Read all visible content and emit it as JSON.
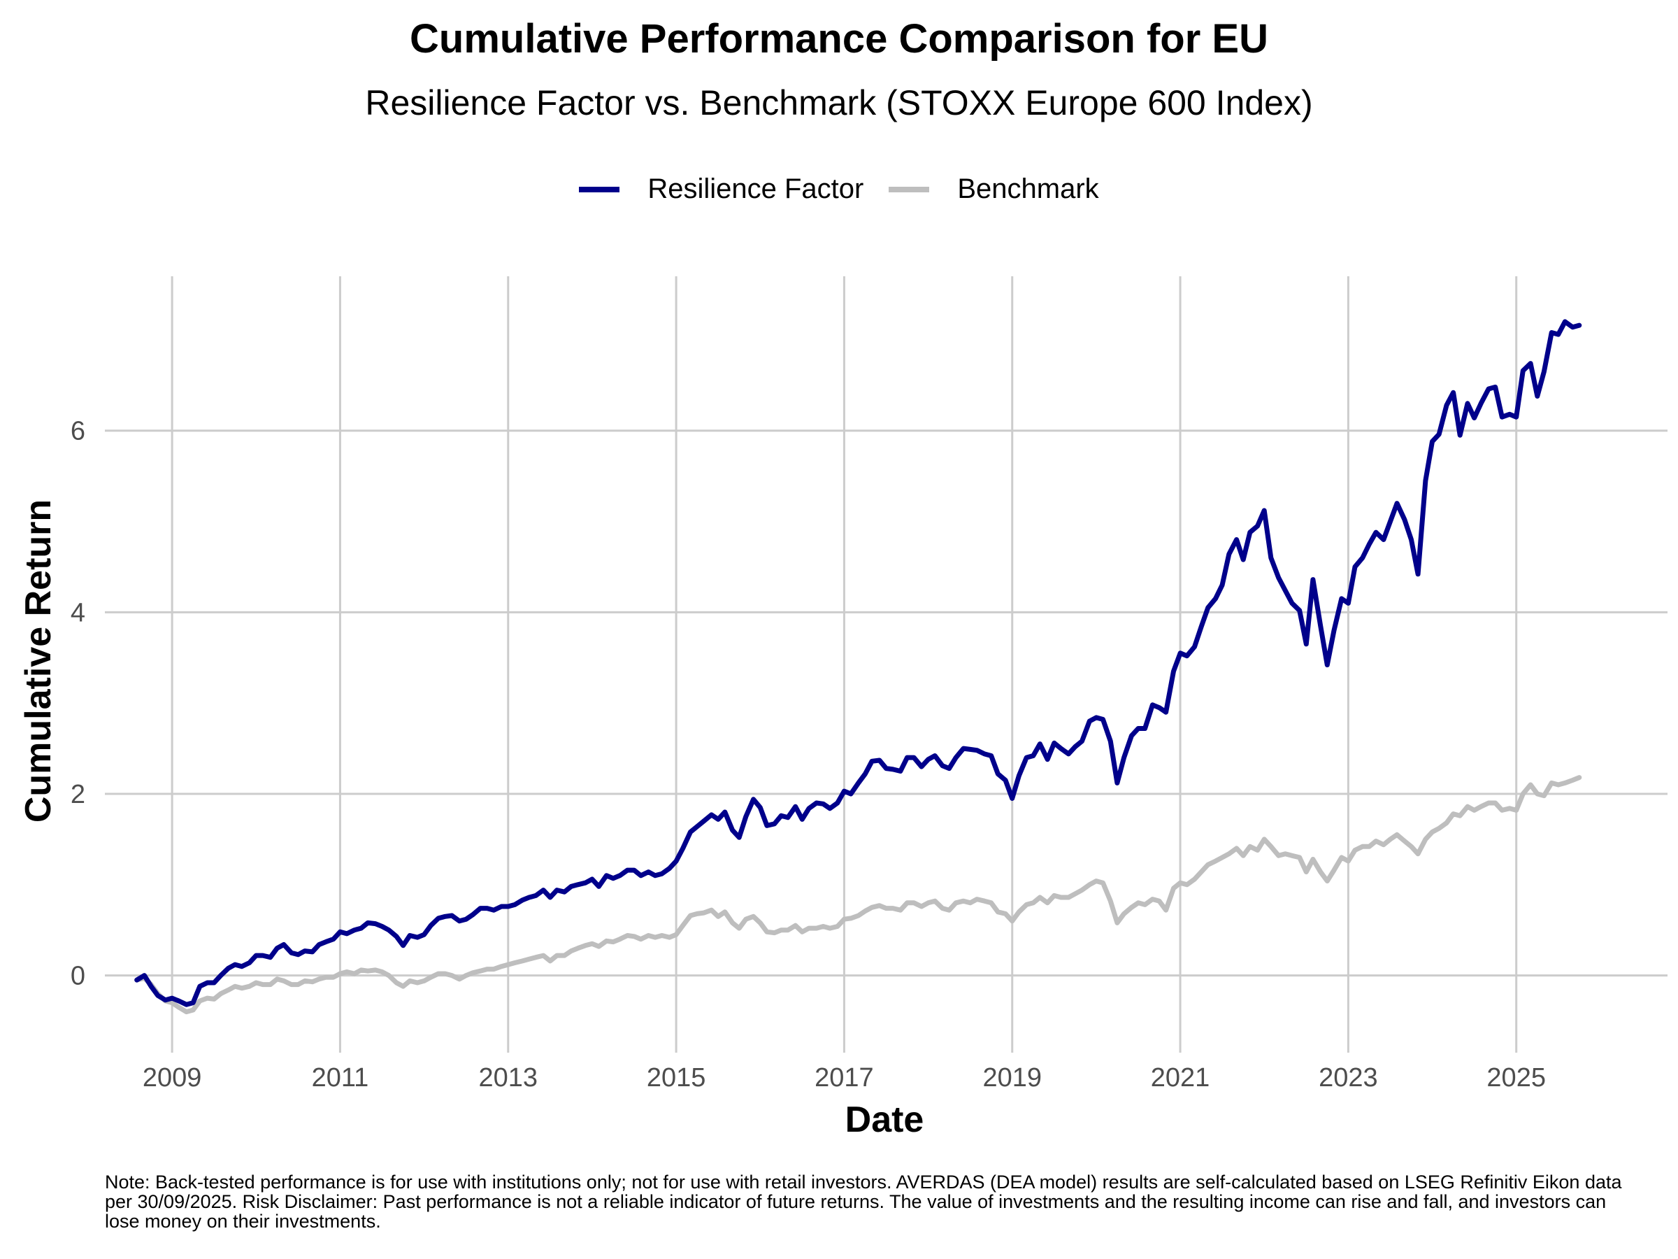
{
  "chart_data": {
    "type": "line",
    "title": "Cumulative Performance Comparison for EU",
    "subtitle": "Resilience Factor vs. Benchmark (STOXX Europe 600 Index)",
    "xlabel": "Date",
    "ylabel": "Cumulative Return",
    "xlim": [
      2008.2,
      2026.8
    ],
    "ylim": [
      -0.85,
      7.7
    ],
    "x_ticks": [
      2009,
      2011,
      2013,
      2015,
      2017,
      2019,
      2021,
      2023,
      2025
    ],
    "y_ticks": [
      0,
      2,
      4,
      6
    ],
    "grid": true,
    "legend_position": "top",
    "series": [
      {
        "name": "Resilience Factor",
        "color": "#00008B",
        "x": [
          2008.58,
          2008.67,
          2008.75,
          2008.83,
          2008.92,
          2009.0,
          2009.08,
          2009.17,
          2009.25,
          2009.33,
          2009.42,
          2009.5,
          2009.58,
          2009.67,
          2009.75,
          2009.83,
          2009.92,
          2010.0,
          2010.08,
          2010.17,
          2010.25,
          2010.33,
          2010.42,
          2010.5,
          2010.58,
          2010.67,
          2010.75,
          2010.83,
          2010.92,
          2011.0,
          2011.08,
          2011.17,
          2011.25,
          2011.33,
          2011.42,
          2011.5,
          2011.58,
          2011.67,
          2011.75,
          2011.83,
          2011.92,
          2012.0,
          2012.08,
          2012.17,
          2012.25,
          2012.33,
          2012.42,
          2012.5,
          2012.58,
          2012.67,
          2012.75,
          2012.83,
          2012.92,
          2013.0,
          2013.08,
          2013.17,
          2013.25,
          2013.33,
          2013.42,
          2013.5,
          2013.58,
          2013.67,
          2013.75,
          2013.83,
          2013.92,
          2014.0,
          2014.08,
          2014.17,
          2014.25,
          2014.33,
          2014.42,
          2014.5,
          2014.58,
          2014.67,
          2014.75,
          2014.83,
          2014.92,
          2015.0,
          2015.08,
          2015.17,
          2015.25,
          2015.33,
          2015.42,
          2015.5,
          2015.58,
          2015.67,
          2015.75,
          2015.83,
          2015.92,
          2016.0,
          2016.08,
          2016.17,
          2016.25,
          2016.33,
          2016.42,
          2016.5,
          2016.58,
          2016.67,
          2016.75,
          2016.83,
          2016.92,
          2017.0,
          2017.08,
          2017.17,
          2017.25,
          2017.33,
          2017.42,
          2017.5,
          2017.58,
          2017.67,
          2017.75,
          2017.83,
          2017.92,
          2018.0,
          2018.08,
          2018.17,
          2018.25,
          2018.33,
          2018.42,
          2018.5,
          2018.58,
          2018.67,
          2018.75,
          2018.83,
          2018.92,
          2019.0,
          2019.08,
          2019.17,
          2019.25,
          2019.33,
          2019.42,
          2019.5,
          2019.58,
          2019.67,
          2019.75,
          2019.83,
          2019.92,
          2020.0,
          2020.08,
          2020.17,
          2020.25,
          2020.33,
          2020.42,
          2020.5,
          2020.58,
          2020.67,
          2020.75,
          2020.83,
          2020.92,
          2021.0,
          2021.08,
          2021.17,
          2021.25,
          2021.33,
          2021.42,
          2021.5,
          2021.58,
          2021.67,
          2021.75,
          2021.83,
          2021.92,
          2022.0,
          2022.08,
          2022.17,
          2022.25,
          2022.33,
          2022.42,
          2022.5,
          2022.58,
          2022.67,
          2022.75,
          2022.83,
          2022.92,
          2023.0,
          2023.08,
          2023.17,
          2023.25,
          2023.33,
          2023.42,
          2023.5,
          2023.58,
          2023.67,
          2023.75,
          2023.83,
          2023.92,
          2024.0,
          2024.08,
          2024.17,
          2024.25,
          2024.33,
          2024.42,
          2024.5,
          2024.58,
          2024.67,
          2024.75,
          2024.83,
          2024.92,
          2025.0,
          2025.08,
          2025.17,
          2025.25,
          2025.33,
          2025.42,
          2025.5,
          2025.58,
          2025.67,
          2025.75
        ],
        "values": [
          -0.05,
          0.0,
          -0.12,
          -0.22,
          -0.27,
          -0.25,
          -0.28,
          -0.32,
          -0.3,
          -0.12,
          -0.08,
          -0.08,
          0.0,
          0.08,
          0.12,
          0.1,
          0.14,
          0.22,
          0.22,
          0.2,
          0.3,
          0.34,
          0.25,
          0.23,
          0.27,
          0.26,
          0.34,
          0.37,
          0.4,
          0.48,
          0.46,
          0.5,
          0.52,
          0.58,
          0.57,
          0.54,
          0.5,
          0.43,
          0.33,
          0.44,
          0.42,
          0.45,
          0.55,
          0.63,
          0.65,
          0.66,
          0.6,
          0.62,
          0.67,
          0.74,
          0.74,
          0.72,
          0.76,
          0.76,
          0.78,
          0.83,
          0.86,
          0.88,
          0.94,
          0.86,
          0.94,
          0.92,
          0.98,
          1.0,
          1.02,
          1.06,
          0.98,
          1.1,
          1.07,
          1.1,
          1.16,
          1.16,
          1.1,
          1.14,
          1.1,
          1.12,
          1.18,
          1.26,
          1.4,
          1.58,
          1.64,
          1.7,
          1.77,
          1.72,
          1.8,
          1.6,
          1.52,
          1.75,
          1.94,
          1.85,
          1.65,
          1.67,
          1.76,
          1.74,
          1.86,
          1.72,
          1.84,
          1.9,
          1.89,
          1.84,
          1.9,
          2.03,
          2.0,
          2.12,
          2.22,
          2.36,
          2.37,
          2.28,
          2.27,
          2.25,
          2.4,
          2.4,
          2.3,
          2.38,
          2.42,
          2.31,
          2.28,
          2.4,
          2.5,
          2.49,
          2.48,
          2.44,
          2.42,
          2.22,
          2.15,
          1.95,
          2.2,
          2.4,
          2.42,
          2.55,
          2.38,
          2.56,
          2.5,
          2.44,
          2.52,
          2.58,
          2.8,
          2.84,
          2.82,
          2.58,
          2.12,
          2.4,
          2.64,
          2.72,
          2.72,
          2.98,
          2.95,
          2.9,
          3.35,
          3.55,
          3.52,
          3.62,
          3.84,
          4.05,
          4.15,
          4.3,
          4.64,
          4.8,
          4.58,
          4.88,
          4.95,
          5.12,
          4.6,
          4.38,
          4.24,
          4.1,
          4.02,
          3.65,
          4.36,
          3.85,
          3.42,
          3.8,
          4.15,
          4.1,
          4.5,
          4.6,
          4.75,
          4.88,
          4.8,
          5.0,
          5.2,
          5.02,
          4.8,
          4.42,
          5.45,
          5.88,
          5.96,
          6.28,
          6.42,
          5.95,
          6.3,
          6.14,
          6.3,
          6.46,
          6.48,
          6.15,
          6.18,
          6.15,
          6.66,
          6.74,
          6.38,
          6.65,
          7.08,
          7.06,
          7.2,
          7.14,
          7.16
        ]
      },
      {
        "name": "Benchmark",
        "color": "#BEBEBE",
        "x": [
          2008.58,
          2008.67,
          2008.75,
          2008.83,
          2008.92,
          2009.0,
          2009.08,
          2009.17,
          2009.25,
          2009.33,
          2009.42,
          2009.5,
          2009.58,
          2009.67,
          2009.75,
          2009.83,
          2009.92,
          2010.0,
          2010.08,
          2010.17,
          2010.25,
          2010.33,
          2010.42,
          2010.5,
          2010.58,
          2010.67,
          2010.75,
          2010.83,
          2010.92,
          2011.0,
          2011.08,
          2011.17,
          2011.25,
          2011.33,
          2011.42,
          2011.5,
          2011.58,
          2011.67,
          2011.75,
          2011.83,
          2011.92,
          2012.0,
          2012.08,
          2012.17,
          2012.25,
          2012.33,
          2012.42,
          2012.5,
          2012.58,
          2012.67,
          2012.75,
          2012.83,
          2012.92,
          2013.0,
          2013.08,
          2013.17,
          2013.25,
          2013.33,
          2013.42,
          2013.5,
          2013.58,
          2013.67,
          2013.75,
          2013.83,
          2013.92,
          2014.0,
          2014.08,
          2014.17,
          2014.25,
          2014.33,
          2014.42,
          2014.5,
          2014.58,
          2014.67,
          2014.75,
          2014.83,
          2014.92,
          2015.0,
          2015.08,
          2015.17,
          2015.25,
          2015.33,
          2015.42,
          2015.5,
          2015.58,
          2015.67,
          2015.75,
          2015.83,
          2015.92,
          2016.0,
          2016.08,
          2016.17,
          2016.25,
          2016.33,
          2016.42,
          2016.5,
          2016.58,
          2016.67,
          2016.75,
          2016.83,
          2016.92,
          2017.0,
          2017.08,
          2017.17,
          2017.25,
          2017.33,
          2017.42,
          2017.5,
          2017.58,
          2017.67,
          2017.75,
          2017.83,
          2017.92,
          2018.0,
          2018.08,
          2018.17,
          2018.25,
          2018.33,
          2018.42,
          2018.5,
          2018.58,
          2018.67,
          2018.75,
          2018.83,
          2018.92,
          2019.0,
          2019.08,
          2019.17,
          2019.25,
          2019.33,
          2019.42,
          2019.5,
          2019.58,
          2019.67,
          2019.75,
          2019.83,
          2019.92,
          2020.0,
          2020.08,
          2020.17,
          2020.25,
          2020.33,
          2020.42,
          2020.5,
          2020.58,
          2020.67,
          2020.75,
          2020.83,
          2020.92,
          2021.0,
          2021.08,
          2021.17,
          2021.25,
          2021.33,
          2021.42,
          2021.5,
          2021.58,
          2021.67,
          2021.75,
          2021.83,
          2021.92,
          2022.0,
          2022.08,
          2022.17,
          2022.25,
          2022.33,
          2022.42,
          2022.5,
          2022.58,
          2022.67,
          2022.75,
          2022.83,
          2022.92,
          2023.0,
          2023.08,
          2023.17,
          2023.25,
          2023.33,
          2023.42,
          2023.5,
          2023.58,
          2023.67,
          2023.75,
          2023.83,
          2023.92,
          2024.0,
          2024.08,
          2024.17,
          2024.25,
          2024.33,
          2024.42,
          2024.5,
          2024.58,
          2024.67,
          2024.75,
          2024.83,
          2024.92,
          2025.0,
          2025.08,
          2025.17,
          2025.25,
          2025.33,
          2025.42,
          2025.5,
          2025.58,
          2025.67,
          2025.75
        ],
        "values": [
          -0.05,
          -0.03,
          -0.1,
          -0.2,
          -0.28,
          -0.3,
          -0.35,
          -0.4,
          -0.38,
          -0.28,
          -0.25,
          -0.26,
          -0.2,
          -0.16,
          -0.12,
          -0.14,
          -0.12,
          -0.08,
          -0.1,
          -0.1,
          -0.04,
          -0.06,
          -0.1,
          -0.1,
          -0.06,
          -0.07,
          -0.04,
          -0.02,
          -0.02,
          0.02,
          0.04,
          0.02,
          0.06,
          0.05,
          0.06,
          0.04,
          0.0,
          -0.08,
          -0.12,
          -0.06,
          -0.08,
          -0.06,
          -0.02,
          0.02,
          0.02,
          0.0,
          -0.04,
          0.0,
          0.03,
          0.05,
          0.07,
          0.07,
          0.1,
          0.12,
          0.14,
          0.16,
          0.18,
          0.2,
          0.22,
          0.16,
          0.22,
          0.22,
          0.27,
          0.3,
          0.33,
          0.35,
          0.32,
          0.38,
          0.37,
          0.4,
          0.44,
          0.43,
          0.4,
          0.44,
          0.42,
          0.44,
          0.42,
          0.45,
          0.55,
          0.66,
          0.68,
          0.69,
          0.72,
          0.65,
          0.7,
          0.58,
          0.52,
          0.62,
          0.65,
          0.58,
          0.48,
          0.47,
          0.5,
          0.5,
          0.55,
          0.48,
          0.52,
          0.52,
          0.54,
          0.52,
          0.54,
          0.62,
          0.63,
          0.66,
          0.71,
          0.75,
          0.77,
          0.74,
          0.74,
          0.72,
          0.8,
          0.8,
          0.76,
          0.8,
          0.82,
          0.74,
          0.72,
          0.8,
          0.82,
          0.8,
          0.84,
          0.82,
          0.8,
          0.7,
          0.68,
          0.6,
          0.7,
          0.78,
          0.8,
          0.86,
          0.8,
          0.88,
          0.86,
          0.86,
          0.9,
          0.94,
          1.0,
          1.04,
          1.02,
          0.82,
          0.58,
          0.68,
          0.75,
          0.8,
          0.78,
          0.84,
          0.82,
          0.72,
          0.96,
          1.02,
          1.0,
          1.06,
          1.14,
          1.22,
          1.26,
          1.3,
          1.34,
          1.4,
          1.32,
          1.42,
          1.38,
          1.5,
          1.42,
          1.32,
          1.34,
          1.32,
          1.3,
          1.14,
          1.28,
          1.14,
          1.04,
          1.16,
          1.3,
          1.26,
          1.38,
          1.42,
          1.42,
          1.48,
          1.44,
          1.5,
          1.55,
          1.48,
          1.42,
          1.34,
          1.5,
          1.58,
          1.62,
          1.68,
          1.78,
          1.76,
          1.86,
          1.82,
          1.86,
          1.9,
          1.9,
          1.82,
          1.84,
          1.82,
          2.0,
          2.1,
          2.0,
          1.98,
          2.12,
          2.1,
          2.12,
          2.15,
          2.18
        ]
      }
    ]
  },
  "note": "Note: Back-tested performance is for use with institutions only; not for use with retail investors. AVERDAS (DEA model) results are self-calculated based on LSEG Refinitiv Eikon data per 30/09/2025. Risk Disclaimer: Past performance is not a reliable indicator of future returns. The value of investments and the resulting income can rise and fall, and investors can lose money on their investments."
}
